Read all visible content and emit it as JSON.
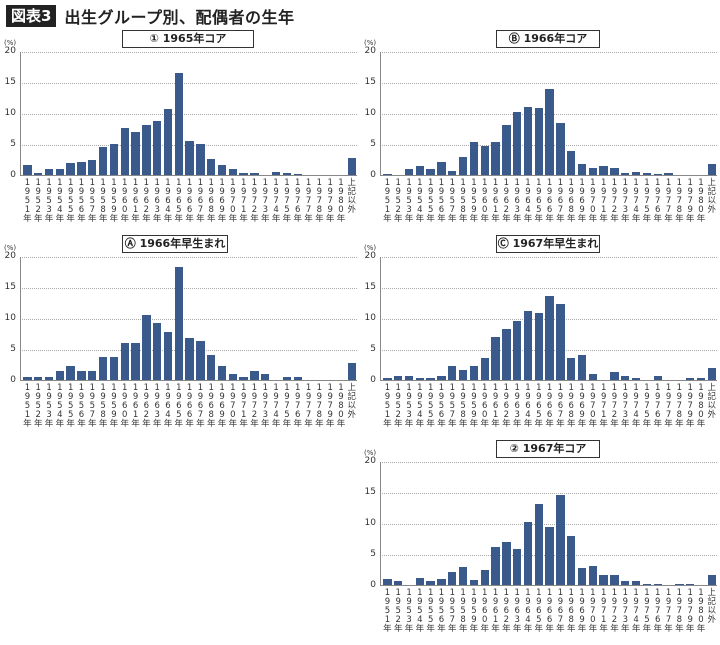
{
  "figure": {
    "tag": "図表3",
    "title": "出生グループ別、配偶者の生年"
  },
  "axis": {
    "unit": "(%)",
    "yticks": [
      "20",
      "15",
      "10",
      "5",
      "0"
    ]
  },
  "categories_labels": [
    [
      "1",
      "9",
      "5",
      "1",
      "年"
    ],
    [
      "1",
      "9",
      "5",
      "2",
      "年"
    ],
    [
      "1",
      "9",
      "5",
      "3",
      "年"
    ],
    [
      "1",
      "9",
      "5",
      "4",
      "年"
    ],
    [
      "1",
      "9",
      "5",
      "5",
      "年"
    ],
    [
      "1",
      "9",
      "5",
      "6",
      "年"
    ],
    [
      "1",
      "9",
      "5",
      "7",
      "年"
    ],
    [
      "1",
      "9",
      "5",
      "8",
      "年"
    ],
    [
      "1",
      "9",
      "5",
      "9",
      "年"
    ],
    [
      "1",
      "9",
      "6",
      "0",
      "年"
    ],
    [
      "1",
      "9",
      "6",
      "1",
      "年"
    ],
    [
      "1",
      "9",
      "6",
      "2",
      "年"
    ],
    [
      "1",
      "9",
      "6",
      "3",
      "年"
    ],
    [
      "1",
      "9",
      "6",
      "4",
      "年"
    ],
    [
      "1",
      "9",
      "6",
      "5",
      "年"
    ],
    [
      "1",
      "9",
      "6",
      "6",
      "年"
    ],
    [
      "1",
      "9",
      "6",
      "7",
      "年"
    ],
    [
      "1",
      "9",
      "6",
      "8",
      "年"
    ],
    [
      "1",
      "9",
      "6",
      "9",
      "年"
    ],
    [
      "1",
      "9",
      "7",
      "0",
      "年"
    ],
    [
      "1",
      "9",
      "7",
      "1",
      "年"
    ],
    [
      "1",
      "9",
      "7",
      "2",
      "年"
    ],
    [
      "1",
      "9",
      "7",
      "3",
      "年"
    ],
    [
      "1",
      "9",
      "7",
      "4",
      "年"
    ],
    [
      "1",
      "9",
      "7",
      "5",
      "年"
    ],
    [
      "1",
      "9",
      "7",
      "6",
      "年"
    ],
    [
      "1",
      "9",
      "7",
      "7",
      "年"
    ],
    [
      "1",
      "9",
      "7",
      "8",
      "年"
    ],
    [
      "1",
      "9",
      "7",
      "9",
      "年"
    ],
    [
      "1",
      "9",
      "8",
      "0",
      "年"
    ],
    [
      "上",
      "記",
      "以",
      "外"
    ]
  ],
  "chart_data": [
    {
      "type": "bar",
      "title": "① 1965年コア",
      "xlabel": "",
      "ylabel": "(%)",
      "ylim": [
        0,
        20
      ],
      "grid": true,
      "categories": [
        "1951年",
        "1952年",
        "1953年",
        "1954年",
        "1955年",
        "1956年",
        "1957年",
        "1958年",
        "1959年",
        "1960年",
        "1961年",
        "1962年",
        "1963年",
        "1964年",
        "1965年",
        "1966年",
        "1967年",
        "1968年",
        "1969年",
        "1970年",
        "1971年",
        "1972年",
        "1973年",
        "1974年",
        "1975年",
        "1976年",
        "1977年",
        "1978年",
        "1979年",
        "1980年",
        "上記以外"
      ],
      "values": [
        1.7,
        0.4,
        0.9,
        0.9,
        1.9,
        2.1,
        2.5,
        4.5,
        5.0,
        7.7,
        7.0,
        8.2,
        8.8,
        10.7,
        16.6,
        5.5,
        5.1,
        2.6,
        1.6,
        1.0,
        0.4,
        0.4,
        0.0,
        0.5,
        0.4,
        0.2,
        0.0,
        0.0,
        0.0,
        0.0,
        2.7
      ]
    },
    {
      "type": "bar",
      "title": "Ⓑ 1966年コア",
      "xlabel": "",
      "ylabel": "(%)",
      "ylim": [
        0,
        20
      ],
      "grid": true,
      "categories": [
        "1951年",
        "1952年",
        "1953年",
        "1954年",
        "1955年",
        "1956年",
        "1957年",
        "1958年",
        "1959年",
        "1960年",
        "1961年",
        "1962年",
        "1963年",
        "1964年",
        "1965年",
        "1966年",
        "1967年",
        "1968年",
        "1969年",
        "1970年",
        "1971年",
        "1972年",
        "1973年",
        "1974年",
        "1975年",
        "1976年",
        "1977年",
        "1978年",
        "1979年",
        "1980年",
        "上記以外"
      ],
      "values": [
        0.2,
        0.0,
        0.9,
        1.4,
        0.9,
        2.1,
        0.7,
        3.0,
        5.4,
        4.7,
        5.4,
        8.2,
        10.2,
        11.0,
        10.9,
        14.0,
        8.4,
        3.9,
        1.8,
        1.1,
        1.4,
        1.1,
        0.4,
        0.5,
        0.4,
        0.2,
        0.4,
        0.0,
        0.0,
        0.0,
        1.8
      ]
    },
    {
      "type": "bar",
      "title": "Ⓐ 1966年早生まれ",
      "xlabel": "",
      "ylabel": "(%)",
      "ylim": [
        0,
        20
      ],
      "grid": true,
      "categories": [
        "1951年",
        "1952年",
        "1953年",
        "1954年",
        "1955年",
        "1956年",
        "1957年",
        "1958年",
        "1959年",
        "1960年",
        "1961年",
        "1962年",
        "1963年",
        "1964年",
        "1965年",
        "1966年",
        "1967年",
        "1968年",
        "1969年",
        "1970年",
        "1971年",
        "1972年",
        "1973年",
        "1974年",
        "1975年",
        "1976年",
        "1977年",
        "1978年",
        "1979年",
        "1980年",
        "上記以外"
      ],
      "values": [
        0.5,
        0.5,
        0.5,
        1.4,
        2.3,
        1.4,
        1.4,
        3.7,
        3.7,
        6.0,
        6.0,
        10.6,
        9.2,
        7.8,
        18.3,
        6.9,
        6.4,
        4.1,
        2.3,
        0.9,
        0.5,
        1.4,
        0.9,
        0.0,
        0.5,
        0.5,
        0.0,
        0.0,
        0.0,
        0.0,
        2.8
      ]
    },
    {
      "type": "bar",
      "title": "Ⓒ 1967年早生まれ",
      "xlabel": "",
      "ylabel": "(%)",
      "ylim": [
        0,
        20
      ],
      "grid": true,
      "categories": [
        "1951年",
        "1952年",
        "1953年",
        "1954年",
        "1955年",
        "1956年",
        "1957年",
        "1958年",
        "1959年",
        "1960年",
        "1961年",
        "1962年",
        "1963年",
        "1964年",
        "1965年",
        "1966年",
        "1967年",
        "1968年",
        "1969年",
        "1970年",
        "1971年",
        "1972年",
        "1973年",
        "1974年",
        "1975年",
        "1976年",
        "1977年",
        "1978年",
        "1979年",
        "1980年",
        "上記以外"
      ],
      "values": [
        0.3,
        0.7,
        0.7,
        0.3,
        0.3,
        0.7,
        2.3,
        1.7,
        2.3,
        3.6,
        7.0,
        8.3,
        9.6,
        11.3,
        10.9,
        13.6,
        12.3,
        3.6,
        4.0,
        1.0,
        0.0,
        1.3,
        0.7,
        0.3,
        0.0,
        0.7,
        0.0,
        0.0,
        0.3,
        0.3,
        2.0
      ]
    },
    {
      "type": "bar",
      "title": "② 1967年コア",
      "xlabel": "",
      "ylabel": "(%)",
      "ylim": [
        0,
        20
      ],
      "grid": true,
      "categories": [
        "1951年",
        "1952年",
        "1953年",
        "1954年",
        "1955年",
        "1956年",
        "1957年",
        "1958年",
        "1959年",
        "1960年",
        "1961年",
        "1962年",
        "1963年",
        "1964年",
        "1965年",
        "1966年",
        "1967年",
        "1968年",
        "1969年",
        "1970年",
        "1971年",
        "1972年",
        "1973年",
        "1974年",
        "1975年",
        "1976年",
        "1977年",
        "1978年",
        "1979年",
        "1980年",
        "上記以外"
      ],
      "values": [
        1.0,
        0.6,
        0.0,
        1.2,
        0.6,
        1.0,
        2.1,
        2.9,
        0.8,
        2.5,
        6.2,
        7.0,
        5.8,
        10.3,
        13.2,
        9.5,
        14.6,
        8.0,
        2.7,
        3.1,
        1.6,
        1.6,
        0.6,
        0.6,
        0.2,
        0.2,
        0.0,
        0.2,
        0.2,
        0.0,
        1.6
      ]
    }
  ],
  "colors": {
    "bar": "#3a5a8c",
    "axis": "#888888",
    "grid": "#aaaaaa",
    "tag_bg": "#222222"
  }
}
